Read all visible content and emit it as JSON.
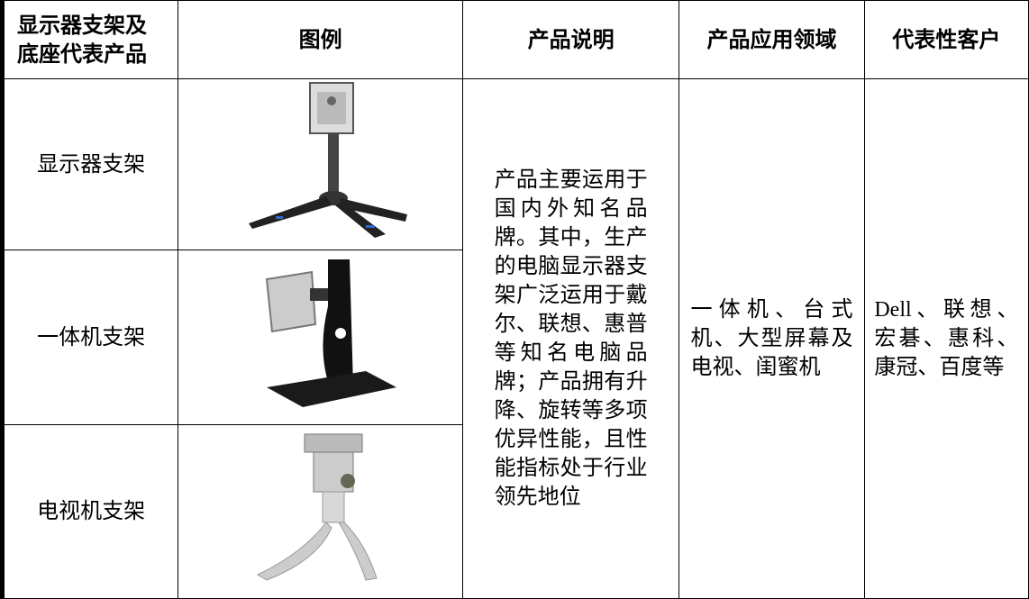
{
  "table": {
    "header": [
      "显示器支架及底座代表产品",
      "图例",
      "产品说明",
      "产品应用领域",
      "代表性客户"
    ],
    "rows": [
      [
        "显示器支架"
      ],
      [
        "一体机支架"
      ],
      [
        "电视机支架"
      ]
    ],
    "description": "产品主要运用于国内外知名品牌。其中，生产的电脑显示器支架广泛运用于戴尔、联想、惠普等知名电脑品牌；产品拥有升降、旋转等多项优异性能，且性能指标处于行业领先地位",
    "application": "一体机、台式机、大型屏幕及电视、闺蜜机",
    "customers": "Dell、联想、宏碁、惠科、康冠、百度等"
  }
}
